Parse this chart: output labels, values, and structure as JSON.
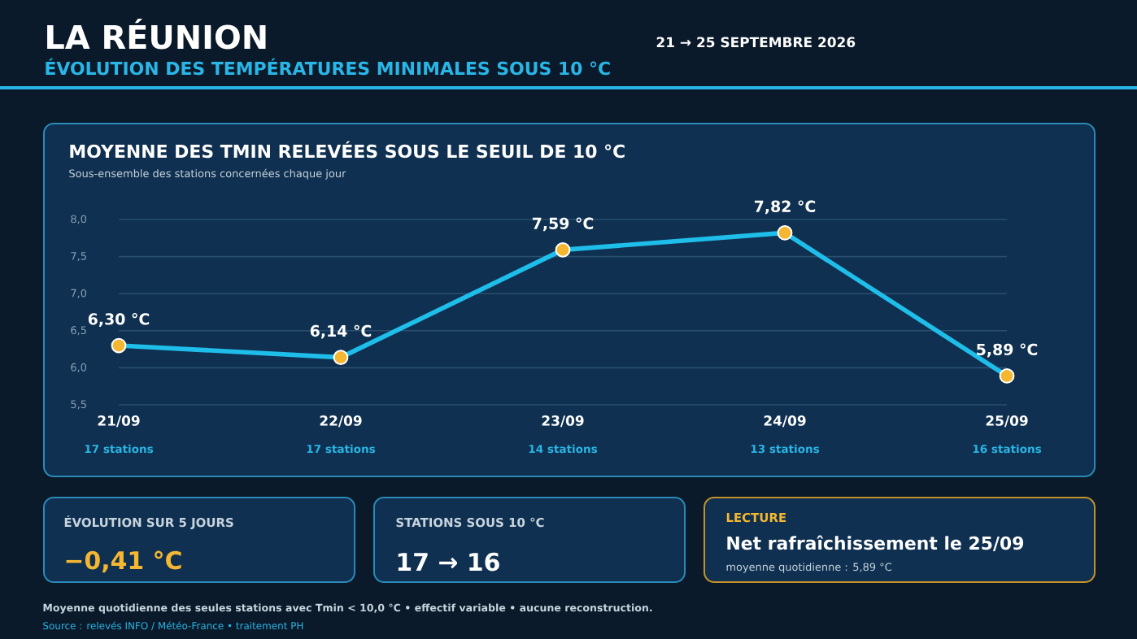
{
  "chart_data": {
    "type": "line",
    "title": "MOYENNE DES TMIN RELEVÉES SOUS LE SEUIL DE 10 °C",
    "subtitle": "Sous-ensemble des stations concernées chaque jour",
    "categories": [
      "21/09",
      "22/09",
      "23/09",
      "24/09",
      "25/09"
    ],
    "series": [
      {
        "color": "#1fbde9",
        "values": [
          6.3,
          6.14,
          7.59,
          7.82,
          5.89
        ],
        "value_labels": [
          "6,30 °C",
          "6,14 °C",
          "7,59 °C",
          "7,82 °C",
          "5,89 °C"
        ]
      }
    ],
    "ylim": [
      5.5,
      8.0
    ],
    "yticks": [
      {
        "value": 5.5,
        "label": "5,5"
      },
      {
        "value": 6.0,
        "label": "6,0"
      },
      {
        "value": 6.5,
        "label": "6,5"
      },
      {
        "value": 7.0,
        "label": "7,0"
      },
      {
        "value": 7.5,
        "label": "7,5"
      },
      {
        "value": 8.0,
        "label": "8,0"
      }
    ],
    "grid": "y",
    "marker": "circle",
    "annotations": [
      "LA RÉUNION",
      "ÉVOLUTION DES TEMPÉRATURES MINIMALES SOUS 10 °C",
      "21 → 25 SEPTEMBRE 2026",
      "ÉVOLUTION SUR 5 JOURS",
      "−0,41 °C",
      "STATIONS SOUS 10 °C",
      "17  →  16",
      "LECTURE",
      "Net rafraîchissement le 25/09",
      "moyenne quotidienne : 5,89 °C",
      "Moyenne quotidienne des seules stations avec Tmin < 10,0 °C • effectif variable • aucune reconstruction.",
      "Source : relevés INFO / Météo-France • traitement PH",
      "17 stations",
      "17 stations",
      "14 stations",
      "13 stations",
      "16 stations"
    ]
  }
}
